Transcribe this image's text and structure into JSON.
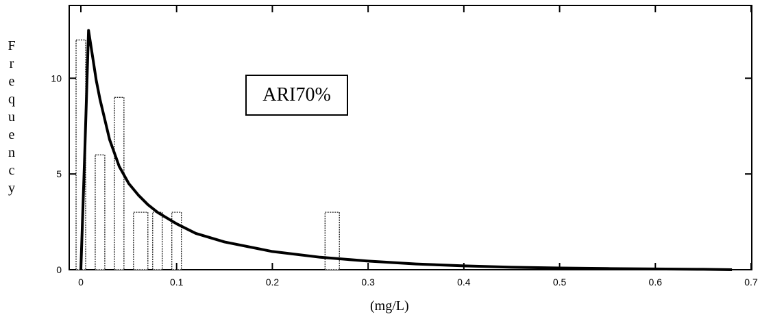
{
  "chart_data": {
    "type": "bar",
    "xlabel": "(mg/L)",
    "ylabel": "Frequency",
    "annotation": "ARI70%",
    "xlim": [
      -0.01,
      0.7
    ],
    "ylim": [
      0,
      13.8
    ],
    "x_ticks": [
      "0",
      "0.1",
      "0.2",
      "0.3",
      "0.4",
      "0.5",
      "0.6",
      "0.7"
    ],
    "x_tick_values": [
      0,
      0.1,
      0.2,
      0.3,
      0.4,
      0.5,
      0.6,
      0.7
    ],
    "y_ticks": [
      "0",
      "5",
      "10"
    ],
    "y_tick_values": [
      0,
      5,
      10
    ],
    "grid": false,
    "histogram": {
      "bins": [
        {
          "from": -0.005,
          "to": 0.005,
          "count": 12
        },
        {
          "from": 0.015,
          "to": 0.025,
          "count": 6
        },
        {
          "from": 0.035,
          "to": 0.045,
          "count": 9
        },
        {
          "from": 0.055,
          "to": 0.07,
          "count": 3
        },
        {
          "from": 0.075,
          "to": 0.085,
          "count": 3
        },
        {
          "from": 0.095,
          "to": 0.105,
          "count": 3
        },
        {
          "from": 0.255,
          "to": 0.27,
          "count": 3
        }
      ]
    },
    "fitted_curve": {
      "x": [
        0.0,
        0.004,
        0.008,
        0.012,
        0.016,
        0.02,
        0.03,
        0.04,
        0.05,
        0.06,
        0.07,
        0.08,
        0.1,
        0.12,
        0.15,
        0.2,
        0.25,
        0.3,
        0.35,
        0.4,
        0.45,
        0.5,
        0.55,
        0.6,
        0.65,
        0.68
      ],
      "y": [
        0.0,
        6.0,
        12.5,
        11.2,
        9.9,
        8.9,
        6.8,
        5.4,
        4.5,
        3.9,
        3.4,
        3.0,
        2.4,
        1.9,
        1.45,
        0.95,
        0.65,
        0.45,
        0.3,
        0.2,
        0.13,
        0.09,
        0.06,
        0.04,
        0.02,
        0.0
      ]
    }
  }
}
